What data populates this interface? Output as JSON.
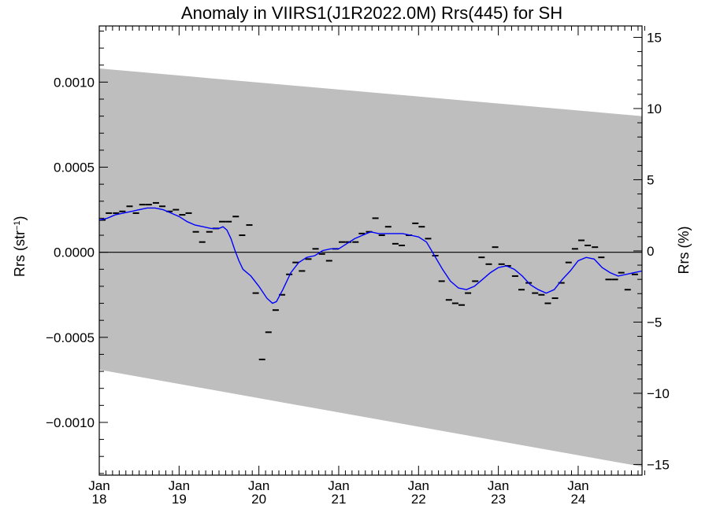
{
  "chart_data": {
    "type": "line",
    "title": "Anomaly in VIIRS1(J1R2022.0M) Rrs(445) for SH",
    "ylabel_left": "Rrs (str",
    "ylabel_left_sup": "−1",
    "ylabel_left_close": ")",
    "ylabel_right": "Rrs (%)",
    "xlim": [
      2018.0,
      2024.8
    ],
    "ylim_left": [
      -0.00131,
      0.00133
    ],
    "ylim_right": [
      -15.75,
      15.8
    ],
    "x_ticks": [
      {
        "x": 2018.0,
        "month": "Jan",
        "year": "18"
      },
      {
        "x": 2019.0,
        "month": "Jan",
        "year": "19"
      },
      {
        "x": 2020.0,
        "month": "Jan",
        "year": "20"
      },
      {
        "x": 2021.0,
        "month": "Jan",
        "year": "21"
      },
      {
        "x": 2022.0,
        "month": "Jan",
        "year": "22"
      },
      {
        "x": 2023.0,
        "month": "Jan",
        "year": "23"
      },
      {
        "x": 2024.0,
        "month": "Jan",
        "year": "24"
      }
    ],
    "y_ticks_left": [
      {
        "value": 0.001,
        "label": "0.0010"
      },
      {
        "value": 0.0005,
        "label": "0.0005"
      },
      {
        "value": 0.0,
        "label": "0.0000"
      },
      {
        "value": -0.0005,
        "label": "−0.0005"
      },
      {
        "value": -0.001,
        "label": "−0.0010"
      }
    ],
    "y_ticks_right": [
      {
        "value": 15,
        "label": "15"
      },
      {
        "value": 10,
        "label": "10"
      },
      {
        "value": 5,
        "label": "5"
      },
      {
        "value": 0,
        "label": "0"
      },
      {
        "value": -5,
        "label": "−5"
      },
      {
        "value": -10,
        "label": "−10"
      },
      {
        "value": -15,
        "label": "−15"
      }
    ],
    "band": {
      "upper": [
        [
          2018.0,
          0.00108
        ],
        [
          2024.8,
          0.0008
        ]
      ],
      "lower": [
        [
          2018.0,
          -0.00069
        ],
        [
          2024.8,
          -0.00126
        ]
      ],
      "color": "#bebebe"
    },
    "zero_line": 0.0,
    "monthly_points": [
      [
        2018.04,
        0.00019
      ],
      [
        2018.12,
        0.00023
      ],
      [
        2018.21,
        0.00023
      ],
      [
        2018.29,
        0.00024
      ],
      [
        2018.38,
        0.00027
      ],
      [
        2018.46,
        0.00023
      ],
      [
        2018.54,
        0.00028
      ],
      [
        2018.62,
        0.00028
      ],
      [
        2018.71,
        0.00029
      ],
      [
        2018.79,
        0.00027
      ],
      [
        2018.88,
        0.00024
      ],
      [
        2018.96,
        0.00025
      ],
      [
        2019.04,
        0.00022
      ],
      [
        2019.12,
        0.00023
      ],
      [
        2019.21,
        0.00012
      ],
      [
        2019.29,
        6e-05
      ],
      [
        2019.38,
        0.00012
      ],
      [
        2019.46,
        0.00014
      ],
      [
        2019.54,
        0.00018
      ],
      [
        2019.62,
        0.00018
      ],
      [
        2019.71,
        0.00021
      ],
      [
        2019.79,
        0.0001
      ],
      [
        2019.88,
        0.00016
      ],
      [
        2019.96,
        -0.00024
      ],
      [
        2020.04,
        -0.00063
      ],
      [
        2020.12,
        -0.00047
      ],
      [
        2020.21,
        -0.00034
      ],
      [
        2020.29,
        -0.00025
      ],
      [
        2020.38,
        -0.00013
      ],
      [
        2020.46,
        -6e-05
      ],
      [
        2020.54,
        -0.00011
      ],
      [
        2020.62,
        -4e-05
      ],
      [
        2020.71,
        2e-05
      ],
      [
        2020.79,
        -1e-05
      ],
      [
        2020.88,
        -5e-05
      ],
      [
        2020.96,
        2e-05
      ],
      [
        2021.04,
        6e-05
      ],
      [
        2021.12,
        6e-05
      ],
      [
        2021.21,
        6e-05
      ],
      [
        2021.29,
        0.00011
      ],
      [
        2021.38,
        0.00012
      ],
      [
        2021.46,
        0.0002
      ],
      [
        2021.54,
        0.0001
      ],
      [
        2021.62,
        0.00015
      ],
      [
        2021.71,
        5e-05
      ],
      [
        2021.79,
        4e-05
      ],
      [
        2021.88,
        0.0001
      ],
      [
        2021.96,
        0.00017
      ],
      [
        2022.04,
        0.00015
      ],
      [
        2022.12,
        8e-05
      ],
      [
        2022.21,
        -2e-05
      ],
      [
        2022.29,
        -0.00017
      ],
      [
        2022.38,
        -0.00028
      ],
      [
        2022.46,
        -0.0003
      ],
      [
        2022.54,
        -0.00031
      ],
      [
        2022.62,
        -0.00024
      ],
      [
        2022.71,
        -0.00017
      ],
      [
        2022.79,
        -3e-05
      ],
      [
        2022.88,
        -7e-05
      ],
      [
        2022.96,
        3e-05
      ],
      [
        2023.04,
        -7e-05
      ],
      [
        2023.12,
        -8e-05
      ],
      [
        2023.21,
        -0.00014
      ],
      [
        2023.29,
        -0.00022
      ],
      [
        2023.38,
        -0.00018
      ],
      [
        2023.46,
        -0.00024
      ],
      [
        2023.54,
        -0.00025
      ],
      [
        2023.62,
        -0.0003
      ],
      [
        2023.71,
        -0.00027
      ],
      [
        2023.79,
        -0.00018
      ],
      [
        2023.88,
        -6e-05
      ],
      [
        2023.96,
        2e-05
      ],
      [
        2024.04,
        7e-05
      ],
      [
        2024.12,
        4e-05
      ],
      [
        2024.21,
        3e-05
      ],
      [
        2024.29,
        -3e-05
      ],
      [
        2024.38,
        -0.00016
      ],
      [
        2024.46,
        -0.00016
      ],
      [
        2024.54,
        -0.00012
      ],
      [
        2024.62,
        -0.00022
      ],
      [
        2024.71,
        -0.00013
      ]
    ],
    "smooth_line": {
      "color": "#0000ff",
      "points": [
        [
          2018.0,
          0.00019
        ],
        [
          2018.1,
          0.0002
        ],
        [
          2018.2,
          0.00022
        ],
        [
          2018.3,
          0.00023
        ],
        [
          2018.4,
          0.00024
        ],
        [
          2018.5,
          0.00025
        ],
        [
          2018.6,
          0.00026
        ],
        [
          2018.7,
          0.00026
        ],
        [
          2018.8,
          0.00025
        ],
        [
          2018.9,
          0.00023
        ],
        [
          2019.0,
          0.00021
        ],
        [
          2019.1,
          0.00018
        ],
        [
          2019.2,
          0.00016
        ],
        [
          2019.3,
          0.00015
        ],
        [
          2019.4,
          0.00014
        ],
        [
          2019.5,
          0.00014
        ],
        [
          2019.55,
          0.00015
        ],
        [
          2019.6,
          0.00013
        ],
        [
          2019.65,
          8e-05
        ],
        [
          2019.7,
          1e-05
        ],
        [
          2019.75,
          -5e-05
        ],
        [
          2019.8,
          -0.0001
        ],
        [
          2019.9,
          -0.00014
        ],
        [
          2020.0,
          -0.0002
        ],
        [
          2020.1,
          -0.00027
        ],
        [
          2020.17,
          -0.0003
        ],
        [
          2020.22,
          -0.00029
        ],
        [
          2020.3,
          -0.00022
        ],
        [
          2020.4,
          -0.00012
        ],
        [
          2020.5,
          -6e-05
        ],
        [
          2020.6,
          -3e-05
        ],
        [
          2020.7,
          -2e-05
        ],
        [
          2020.8,
          1e-05
        ],
        [
          2020.9,
          2e-05
        ],
        [
          2021.0,
          2e-05
        ],
        [
          2021.1,
          5e-05
        ],
        [
          2021.2,
          8e-05
        ],
        [
          2021.3,
          0.0001
        ],
        [
          2021.4,
          0.00012
        ],
        [
          2021.5,
          0.00011
        ],
        [
          2021.6,
          0.00011
        ],
        [
          2021.7,
          0.00011
        ],
        [
          2021.8,
          0.00011
        ],
        [
          2021.9,
          0.0001
        ],
        [
          2022.0,
          9e-05
        ],
        [
          2022.1,
          6e-05
        ],
        [
          2022.2,
          -2e-05
        ],
        [
          2022.3,
          -0.0001
        ],
        [
          2022.4,
          -0.00017
        ],
        [
          2022.5,
          -0.00021
        ],
        [
          2022.6,
          -0.00022
        ],
        [
          2022.7,
          -0.0002
        ],
        [
          2022.8,
          -0.00016
        ],
        [
          2022.9,
          -0.00012
        ],
        [
          2023.0,
          -9e-05
        ],
        [
          2023.1,
          -8e-05
        ],
        [
          2023.2,
          -0.0001
        ],
        [
          2023.3,
          -0.00014
        ],
        [
          2023.4,
          -0.00019
        ],
        [
          2023.5,
          -0.00022
        ],
        [
          2023.6,
          -0.00024
        ],
        [
          2023.7,
          -0.00022
        ],
        [
          2023.8,
          -0.00016
        ],
        [
          2023.9,
          -0.00011
        ],
        [
          2024.0,
          -5e-05
        ],
        [
          2024.1,
          -3e-05
        ],
        [
          2024.2,
          -4e-05
        ],
        [
          2024.3,
          -9e-05
        ],
        [
          2024.4,
          -0.00012
        ],
        [
          2024.5,
          -0.00014
        ],
        [
          2024.6,
          -0.00013
        ],
        [
          2024.7,
          -0.00012
        ],
        [
          2024.8,
          -0.00011
        ]
      ]
    },
    "grid": false,
    "legend": "none"
  }
}
